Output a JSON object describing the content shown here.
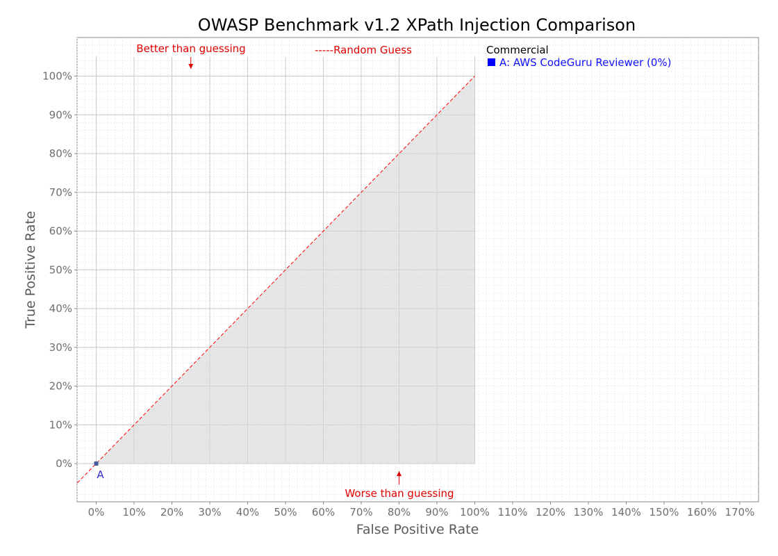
{
  "chart_data": {
    "type": "scatter",
    "title": "OWASP Benchmark v1.2 XPath Injection Comparison",
    "xlabel": "False Positive Rate",
    "ylabel": "True Positive Rate",
    "x_unit": "%",
    "y_unit": "%",
    "xlim": [
      -5,
      175
    ],
    "ylim": [
      -10,
      110
    ],
    "x_ticks": [
      0,
      10,
      20,
      30,
      40,
      50,
      60,
      70,
      80,
      90,
      100,
      110,
      120,
      130,
      140,
      150,
      160,
      170
    ],
    "y_ticks": [
      0,
      10,
      20,
      30,
      40,
      50,
      60,
      70,
      80,
      90,
      100
    ],
    "x_tick_labels": [
      "0%",
      "10%",
      "20%",
      "30%",
      "40%",
      "50%",
      "60%",
      "70%",
      "80%",
      "90%",
      "100%",
      "110%",
      "120%",
      "130%",
      "140%",
      "150%",
      "160%",
      "170%"
    ],
    "y_tick_labels": [
      "0%",
      "10%",
      "20%",
      "30%",
      "40%",
      "50%",
      "60%",
      "70%",
      "80%",
      "90%",
      "100%"
    ],
    "grid": true,
    "shaded_region": "below random-guess diagonal, 0%–100%",
    "reference_line": {
      "label": "Random Guess",
      "style": "dashed",
      "color": "#ff0000",
      "from": [
        -5,
        -5
      ],
      "to": [
        100,
        100
      ]
    },
    "annotations": {
      "better": {
        "text": "Better than guessing",
        "x": 25,
        "y": 100,
        "arrow": "down"
      },
      "worse": {
        "text": "Worse than guessing",
        "x": 80,
        "y": 0,
        "arrow": "up"
      }
    },
    "legend": {
      "placement": "top-right",
      "random_guess_label": "-----Random Guess",
      "group_heading": "Commercial",
      "entries": [
        {
          "marker": "square",
          "text": "A: AWS CodeGuru Reviewer (0%)",
          "color": "#0000ff"
        }
      ]
    },
    "series": [
      {
        "points": [
          {
            "label": "A",
            "x": 0,
            "y": 0
          }
        ],
        "color": "#4a5a9a",
        "label_color": "#3030d0"
      }
    ]
  }
}
